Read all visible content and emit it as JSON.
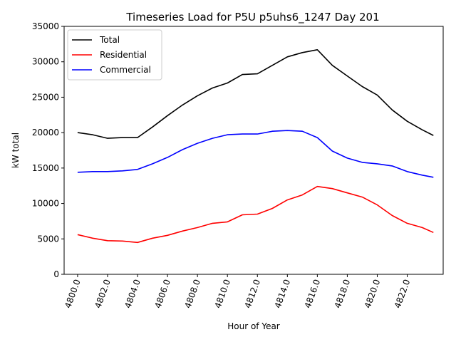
{
  "chart_data": {
    "type": "line",
    "title": "Timeseries Load for P5U p5uhs6_1247  Day 201",
    "xlabel": "Hour of Year",
    "ylabel": "kW total",
    "xlim": [
      4799.1,
      4824.4
    ],
    "ylim": [
      0,
      35000
    ],
    "xticks": [
      4800,
      4802,
      4804,
      4806,
      4808,
      4810,
      4812,
      4814,
      4816,
      4818,
      4820,
      4822
    ],
    "xtick_labels": [
      "4800.0",
      "4802.0",
      "4804.0",
      "4806.0",
      "4808.0",
      "4810.0",
      "4812.0",
      "4814.0",
      "4816.0",
      "4818.0",
      "4820.0",
      "4822.0"
    ],
    "yticks": [
      0,
      5000,
      10000,
      15000,
      20000,
      25000,
      30000,
      35000
    ],
    "ytick_labels": [
      "0",
      "5000",
      "10000",
      "15000",
      "20000",
      "25000",
      "30000",
      "35000"
    ],
    "grid": false,
    "legend_position": "top-left",
    "x": [
      4800,
      4801,
      4802,
      4803,
      4804,
      4805,
      4806,
      4807,
      4808,
      4809,
      4810,
      4811,
      4812,
      4813,
      4814,
      4815,
      4816,
      4817,
      4818,
      4819,
      4820,
      4821,
      4822,
      4823,
      4823.75
    ],
    "series": [
      {
        "name": "Total",
        "color": "#000000",
        "values": [
          20000,
          19700,
          19200,
          19300,
          19300,
          20800,
          22400,
          23900,
          25200,
          26300,
          27000,
          28200,
          28300,
          29500,
          30700,
          31300,
          31700,
          29500,
          28000,
          26500,
          25300,
          23200,
          21600,
          20400,
          19600
        ]
      },
      {
        "name": "Residential",
        "color": "#ff0000",
        "values": [
          5600,
          5100,
          4750,
          4700,
          4500,
          5100,
          5500,
          6100,
          6600,
          7200,
          7400,
          8400,
          8500,
          9300,
          10500,
          11200,
          12400,
          12100,
          11500,
          10900,
          9800,
          8300,
          7200,
          6600,
          5900
        ]
      },
      {
        "name": "Commercial",
        "color": "#0000ff",
        "values": [
          14400,
          14500,
          14500,
          14600,
          14800,
          15600,
          16500,
          17600,
          18500,
          19200,
          19700,
          19800,
          19800,
          20200,
          20300,
          20200,
          19300,
          17400,
          16400,
          15800,
          15600,
          15300,
          14500,
          14000,
          13700
        ]
      }
    ]
  }
}
